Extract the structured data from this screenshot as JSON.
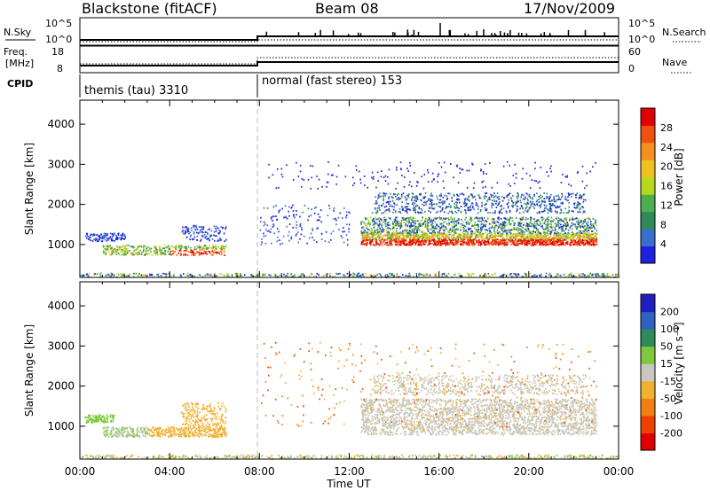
{
  "header": {
    "station": "Blackstone (fitACF)",
    "beam": "Beam 08",
    "date": "17/Nov/2009"
  },
  "top_panels": {
    "nsky_label": "N.Sky",
    "nsearch_label": "N.Search",
    "freq_label_1": "Freq.",
    "freq_label_2": "[MHz]",
    "nave_label": "Nave",
    "cpid_label": "CPID",
    "left_ticks": [
      "10^5",
      "10^0",
      "18",
      "8"
    ],
    "right_ticks": [
      "10^5",
      "10^0",
      "60",
      "0"
    ],
    "cpid_segments": [
      "themis (tau) 3310",
      "normal (fast stereo) 153"
    ]
  },
  "colors": {
    "power": [
      "#2020e0",
      "#3a6ecc",
      "#2e8b57",
      "#4caf50",
      "#b8d820",
      "#f0c020",
      "#f59020",
      "#f05010",
      "#e00000"
    ],
    "velocity": [
      "#2020c0",
      "#3060c0",
      "#2e8b57",
      "#80c840",
      "#c8c8c0",
      "#f0b030",
      "#f08010",
      "#f04000",
      "#e00000"
    ]
  },
  "chart_data": [
    {
      "type": "heatmap",
      "name": "power",
      "ylabel": "Slant Range [km]",
      "xlabel": "Time UT",
      "x_ticks": [
        "00:00",
        "04:00",
        "08:00",
        "12:00",
        "16:00",
        "20:00",
        "00:00"
      ],
      "y_ticks": [
        "1000",
        "2000",
        "3000",
        "4000"
      ],
      "ylim": [
        180,
        4600
      ],
      "colorbar": {
        "label": "Power [dB]",
        "ticks": [
          "4",
          "8",
          "12",
          "16",
          "20",
          "24",
          "28"
        ]
      }
    },
    {
      "type": "heatmap",
      "name": "velocity",
      "ylabel": "Slant Range [km]",
      "xlabel": "Time UT",
      "x_ticks": [
        "00:00",
        "04:00",
        "08:00",
        "12:00",
        "16:00",
        "20:00",
        "00:00"
      ],
      "y_ticks": [
        "1000",
        "2000",
        "3000",
        "4000"
      ],
      "ylim": [
        180,
        4600
      ],
      "colorbar": {
        "label": "Velocity [m s⁻¹]",
        "ticks": [
          "200",
          "100",
          "50",
          "15",
          "-15",
          "-50",
          "-100",
          "-200"
        ]
      }
    }
  ]
}
